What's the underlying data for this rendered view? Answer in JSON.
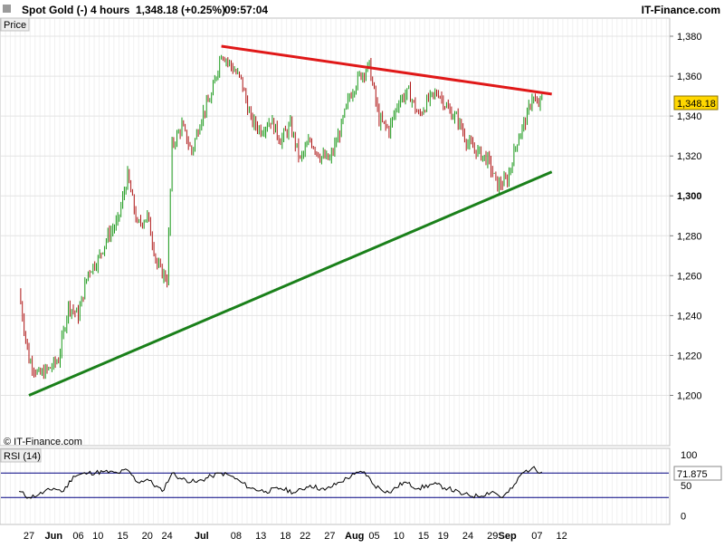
{
  "header": {
    "instrument": "Spot Gold (-)",
    "interval": "4 hours",
    "price": "1,348.18 (+0.25%)",
    "time": "09:57:04",
    "brand": "IT-Finance.com"
  },
  "price_panel": {
    "tab_label": "Price",
    "watermark": "© IT-Finance.com"
  },
  "rsi_panel": {
    "tab_label": "RSI (14)"
  },
  "colors": {
    "up": "#1a9a1a",
    "down": "#b01818",
    "resistance": "#e01818",
    "support": "#1a801a",
    "tag_bg": "#ffd700",
    "rsi_line": "#000000",
    "rsi_level": "#000080"
  },
  "chart_data": [
    {
      "type": "candlestick",
      "title": "Spot Gold (-)",
      "ylabel": "Price",
      "ylim": [
        1194,
        1386
      ],
      "y_ticks": [
        "1,380",
        "1,360",
        "1,340",
        "1,320",
        "1,300",
        "1,280",
        "1,260",
        "1,240",
        "1,220",
        "1,200"
      ],
      "x_ticks": [
        "27",
        "Jun",
        "06",
        "10",
        "15",
        "20",
        "24",
        "Jul",
        "08",
        "13",
        "18",
        "22",
        "27",
        "Aug",
        "05",
        "10",
        "15",
        "19",
        "24",
        "29",
        "Sep",
        "07",
        "12"
      ],
      "last_price": "1,348.18",
      "grid": true,
      "path_points": [
        {
          "date": "May 25",
          "price": 1252
        },
        {
          "date": "May 26",
          "price": 1234
        },
        {
          "date": "May 27",
          "price": 1218
        },
        {
          "date": "May 29",
          "price": 1210
        },
        {
          "date": "May 31",
          "price": 1213
        },
        {
          "date": "Jun 02",
          "price": 1218
        },
        {
          "date": "Jun 04",
          "price": 1245
        },
        {
          "date": "Jun 06",
          "price": 1240
        },
        {
          "date": "Jun 08",
          "price": 1262
        },
        {
          "date": "Jun 10",
          "price": 1268
        },
        {
          "date": "Jun 12",
          "price": 1280
        },
        {
          "date": "Jun 14",
          "price": 1287
        },
        {
          "date": "Jun 16",
          "price": 1310
        },
        {
          "date": "Jun 18",
          "price": 1285
        },
        {
          "date": "Jun 20",
          "price": 1290
        },
        {
          "date": "Jun 22",
          "price": 1265
        },
        {
          "date": "Jun 24",
          "price": 1258
        },
        {
          "date": "Jun 25",
          "price": 1325
        },
        {
          "date": "Jun 27",
          "price": 1335
        },
        {
          "date": "Jun 29",
          "price": 1322
        },
        {
          "date": "Jul 01",
          "price": 1340
        },
        {
          "date": "Jul 03",
          "price": 1350
        },
        {
          "date": "Jul 05",
          "price": 1372
        },
        {
          "date": "Jul 07",
          "price": 1365
        },
        {
          "date": "Jul 09",
          "price": 1358
        },
        {
          "date": "Jul 11",
          "price": 1338
        },
        {
          "date": "Jul 13",
          "price": 1333
        },
        {
          "date": "Jul 15",
          "price": 1338
        },
        {
          "date": "Jul 17",
          "price": 1328
        },
        {
          "date": "Jul 19",
          "price": 1335
        },
        {
          "date": "Jul 21",
          "price": 1318
        },
        {
          "date": "Jul 23",
          "price": 1328
        },
        {
          "date": "Jul 25",
          "price": 1320
        },
        {
          "date": "Jul 27",
          "price": 1318
        },
        {
          "date": "Jul 29",
          "price": 1332
        },
        {
          "date": "Jul 31",
          "price": 1350
        },
        {
          "date": "Aug 02",
          "price": 1360
        },
        {
          "date": "Aug 04",
          "price": 1365
        },
        {
          "date": "Aug 06",
          "price": 1338
        },
        {
          "date": "Aug 08",
          "price": 1333
        },
        {
          "date": "Aug 10",
          "price": 1348
        },
        {
          "date": "Aug 12",
          "price": 1352
        },
        {
          "date": "Aug 14",
          "price": 1340
        },
        {
          "date": "Aug 16",
          "price": 1348
        },
        {
          "date": "Aug 18",
          "price": 1352
        },
        {
          "date": "Aug 20",
          "price": 1343
        },
        {
          "date": "Aug 22",
          "price": 1338
        },
        {
          "date": "Aug 24",
          "price": 1326
        },
        {
          "date": "Aug 26",
          "price": 1322
        },
        {
          "date": "Aug 28",
          "price": 1318
        },
        {
          "date": "Aug 30",
          "price": 1305
        },
        {
          "date": "Sep 01",
          "price": 1308
        },
        {
          "date": "Sep 03",
          "price": 1328
        },
        {
          "date": "Sep 05",
          "price": 1340
        },
        {
          "date": "Sep 06",
          "price": 1350
        },
        {
          "date": "Sep 07",
          "price": 1345
        },
        {
          "date": "Sep 08",
          "price": 1348.18
        }
      ],
      "trendlines": [
        {
          "name": "resistance",
          "from": {
            "date": "Jul 05",
            "price": 1375
          },
          "to": {
            "date": "Sep 10",
            "price": 1351
          }
        },
        {
          "name": "support",
          "from": {
            "date": "May 27",
            "price": 1200
          },
          "to": {
            "date": "Sep 10",
            "price": 1312
          }
        }
      ]
    },
    {
      "type": "line",
      "title": "RSI (14)",
      "ylim": [
        0,
        100
      ],
      "y_ticks": [
        "100",
        "50",
        "0"
      ],
      "levels": [
        70,
        30
      ],
      "last_value": "71.875",
      "path_points": [
        {
          "date": "May 25",
          "value": 40
        },
        {
          "date": "May 27",
          "value": 30
        },
        {
          "date": "May 29",
          "value": 35
        },
        {
          "date": "Jun 01",
          "value": 45
        },
        {
          "date": "Jun 03",
          "value": 40
        },
        {
          "date": "Jun 05",
          "value": 65
        },
        {
          "date": "Jun 08",
          "value": 70
        },
        {
          "date": "Jun 11",
          "value": 72
        },
        {
          "date": "Jun 14",
          "value": 70
        },
        {
          "date": "Jun 16",
          "value": 75
        },
        {
          "date": "Jun 18",
          "value": 55
        },
        {
          "date": "Jun 20",
          "value": 60
        },
        {
          "date": "Jun 23",
          "value": 40
        },
        {
          "date": "Jun 25",
          "value": 70
        },
        {
          "date": "Jun 27",
          "value": 60
        },
        {
          "date": "Jun 30",
          "value": 55
        },
        {
          "date": "Jul 03",
          "value": 65
        },
        {
          "date": "Jul 05",
          "value": 70
        },
        {
          "date": "Jul 07",
          "value": 65
        },
        {
          "date": "Jul 09",
          "value": 55
        },
        {
          "date": "Jul 11",
          "value": 45
        },
        {
          "date": "Jul 14",
          "value": 40
        },
        {
          "date": "Jul 17",
          "value": 45
        },
        {
          "date": "Jul 20",
          "value": 38
        },
        {
          "date": "Jul 23",
          "value": 50
        },
        {
          "date": "Jul 26",
          "value": 42
        },
        {
          "date": "Jul 29",
          "value": 55
        },
        {
          "date": "Aug 01",
          "value": 68
        },
        {
          "date": "Aug 03",
          "value": 72
        },
        {
          "date": "Aug 05",
          "value": 50
        },
        {
          "date": "Aug 08",
          "value": 38
        },
        {
          "date": "Aug 11",
          "value": 55
        },
        {
          "date": "Aug 14",
          "value": 45
        },
        {
          "date": "Aug 17",
          "value": 52
        },
        {
          "date": "Aug 20",
          "value": 45
        },
        {
          "date": "Aug 23",
          "value": 35
        },
        {
          "date": "Aug 26",
          "value": 32
        },
        {
          "date": "Aug 29",
          "value": 40
        },
        {
          "date": "Aug 31",
          "value": 30
        },
        {
          "date": "Sep 02",
          "value": 45
        },
        {
          "date": "Sep 04",
          "value": 70
        },
        {
          "date": "Sep 06",
          "value": 78
        },
        {
          "date": "Sep 08",
          "value": 71.875
        }
      ]
    }
  ]
}
